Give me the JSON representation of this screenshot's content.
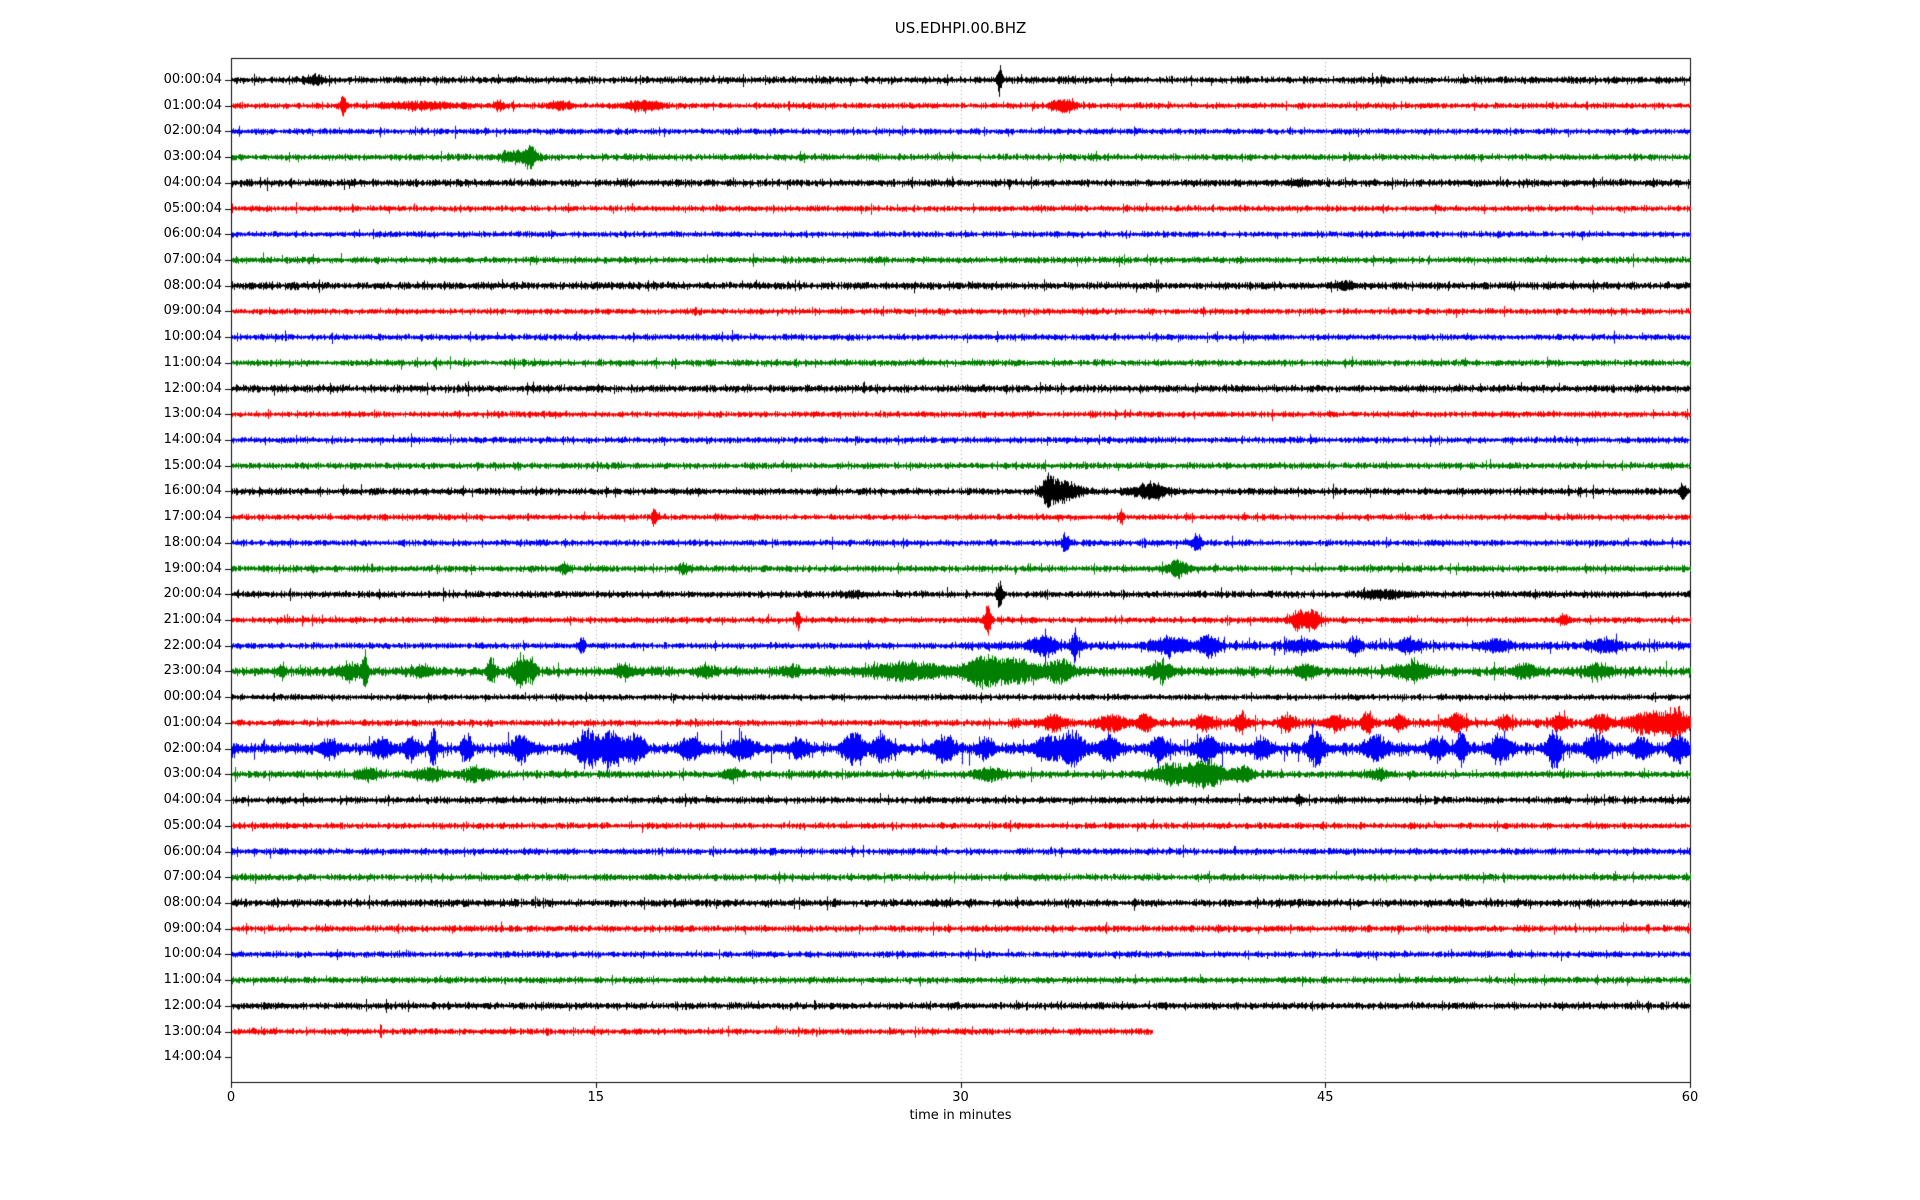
{
  "chart_data": {
    "type": "line",
    "subtype": "seismogram-helicorder-dayplot",
    "title": "US.EDHPI.00.BHZ",
    "xlabel": "time in minutes",
    "xaxis": {
      "min": 0,
      "max": 60,
      "ticks": [
        "0",
        "15",
        "30",
        "45",
        "60"
      ],
      "tick_values": [
        0,
        15,
        30,
        45,
        60
      ],
      "gridlines_at": [
        15,
        30,
        45
      ],
      "grid_style": "dotted"
    },
    "grid_color": "#8a8a8a",
    "trace_colors": {
      "k": "#000000",
      "r": "#ff0000",
      "b": "#0000ff",
      "g": "#008000"
    },
    "color_cycle": [
      "k",
      "r",
      "b",
      "g"
    ],
    "rows": [
      {
        "label": "00:00:04",
        "color": "k",
        "end": 60,
        "sigma": 2.7,
        "bursts": [
          [
            3.4,
            0.25,
            3
          ],
          [
            31.6,
            0.07,
            12
          ]
        ]
      },
      {
        "label": "01:00:04",
        "color": "r",
        "end": 60,
        "sigma": 2.3,
        "bursts": [
          [
            4.6,
            0.08,
            8
          ],
          [
            7.8,
            1.0,
            2.5
          ],
          [
            11.0,
            0.15,
            4
          ],
          [
            13.5,
            0.3,
            3
          ],
          [
            16.9,
            0.5,
            4
          ],
          [
            34.2,
            0.35,
            5
          ]
        ]
      },
      {
        "label": "02:00:04",
        "color": "b",
        "end": 60,
        "sigma": 2.3,
        "bursts": []
      },
      {
        "label": "03:00:04",
        "color": "g",
        "end": 60,
        "sigma": 2.5,
        "bursts": [
          [
            11.8,
            0.5,
            5
          ],
          [
            12.3,
            0.15,
            7
          ]
        ]
      },
      {
        "label": "04:00:04",
        "color": "k",
        "end": 60,
        "sigma": 2.8,
        "bursts": [
          [
            44.0,
            0.3,
            2
          ]
        ]
      },
      {
        "label": "05:00:04",
        "color": "r",
        "end": 60,
        "sigma": 2.3,
        "bursts": []
      },
      {
        "label": "06:00:04",
        "color": "b",
        "end": 60,
        "sigma": 2.3,
        "bursts": []
      },
      {
        "label": "07:00:04",
        "color": "g",
        "end": 60,
        "sigma": 2.5,
        "bursts": []
      },
      {
        "label": "08:00:04",
        "color": "k",
        "end": 60,
        "sigma": 2.9,
        "bursts": [
          [
            45.8,
            0.3,
            3
          ]
        ]
      },
      {
        "label": "09:00:04",
        "color": "r",
        "end": 60,
        "sigma": 2.3,
        "bursts": []
      },
      {
        "label": "10:00:04",
        "color": "b",
        "end": 60,
        "sigma": 2.4,
        "bursts": []
      },
      {
        "label": "11:00:04",
        "color": "g",
        "end": 60,
        "sigma": 2.5,
        "bursts": []
      },
      {
        "label": "12:00:04",
        "color": "k",
        "end": 60,
        "sigma": 2.8,
        "bursts": []
      },
      {
        "label": "13:00:04",
        "color": "r",
        "end": 60,
        "sigma": 2.3,
        "bursts": []
      },
      {
        "label": "14:00:04",
        "color": "b",
        "end": 60,
        "sigma": 2.4,
        "bursts": []
      },
      {
        "label": "15:00:04",
        "color": "g",
        "end": 60,
        "sigma": 2.5,
        "bursts": []
      },
      {
        "label": "16:00:04",
        "color": "k",
        "end": 60,
        "sigma": 2.7,
        "bursts": [
          [
            33.6,
            0.2,
            9
          ],
          [
            34.2,
            0.5,
            8
          ],
          [
            37.8,
            0.5,
            6
          ],
          [
            59.7,
            0.1,
            6
          ]
        ]
      },
      {
        "label": "17:00:04",
        "color": "r",
        "end": 60,
        "sigma": 2.3,
        "bursts": [
          [
            17.4,
            0.08,
            9
          ],
          [
            36.6,
            0.07,
            7
          ]
        ]
      },
      {
        "label": "18:00:04",
        "color": "b",
        "end": 60,
        "sigma": 2.4,
        "bursts": [
          [
            34.3,
            0.1,
            8
          ],
          [
            39.7,
            0.15,
            7
          ]
        ]
      },
      {
        "label": "19:00:04",
        "color": "g",
        "end": 60,
        "sigma": 2.5,
        "bursts": [
          [
            13.7,
            0.15,
            4
          ],
          [
            18.6,
            0.15,
            4
          ],
          [
            38.9,
            0.3,
            7
          ]
        ]
      },
      {
        "label": "20:00:04",
        "color": "k",
        "end": 60,
        "sigma": 2.6,
        "bursts": [
          [
            25.5,
            0.3,
            2
          ],
          [
            31.6,
            0.08,
            11
          ],
          [
            47.3,
            0.7,
            3
          ]
        ]
      },
      {
        "label": "21:00:04",
        "color": "r",
        "end": 60,
        "sigma": 2.4,
        "bursts": [
          [
            23.3,
            0.07,
            8
          ],
          [
            31.1,
            0.1,
            12
          ],
          [
            43.9,
            0.25,
            8
          ],
          [
            44.5,
            0.2,
            9
          ],
          [
            54.8,
            0.15,
            4
          ]
        ]
      },
      {
        "label": "22:00:04",
        "color": "b",
        "end": 60,
        "sigma": 2.4,
        "sigma2": 3.4,
        "sigma2_from": 30,
        "bursts": [
          [
            14.4,
            0.1,
            6
          ],
          [
            33.4,
            0.4,
            8
          ],
          [
            34.7,
            0.12,
            12
          ],
          [
            38.6,
            0.5,
            7
          ],
          [
            40.2,
            0.3,
            9
          ],
          [
            44.0,
            0.4,
            5
          ],
          [
            46.2,
            0.2,
            6
          ],
          [
            48.4,
            0.3,
            6
          ],
          [
            52.0,
            0.4,
            5
          ],
          [
            56.5,
            0.4,
            5
          ]
        ]
      },
      {
        "label": "23:00:04",
        "color": "g",
        "end": 60,
        "sigma": 3.6,
        "bursts": [
          [
            2.1,
            0.1,
            6
          ],
          [
            4.9,
            0.4,
            6
          ],
          [
            5.5,
            0.08,
            14
          ],
          [
            7.8,
            0.3,
            4
          ],
          [
            10.7,
            0.12,
            11
          ],
          [
            11.9,
            0.25,
            13
          ],
          [
            12.4,
            0.1,
            9
          ],
          [
            16.2,
            0.3,
            4
          ],
          [
            19.5,
            0.3,
            4
          ],
          [
            23.0,
            0.3,
            4
          ],
          [
            27.8,
            1.2,
            6
          ],
          [
            30.9,
            0.5,
            11
          ],
          [
            32.3,
            0.7,
            9
          ],
          [
            34.1,
            0.4,
            8
          ],
          [
            38.2,
            0.35,
            8
          ],
          [
            44.2,
            0.3,
            5
          ],
          [
            48.6,
            0.5,
            7
          ],
          [
            53.2,
            0.35,
            6
          ],
          [
            56.2,
            0.4,
            5
          ]
        ]
      },
      {
        "label": "00:00:04",
        "color": "k",
        "end": 60,
        "sigma": 2.3,
        "bursts": []
      },
      {
        "label": "01:00:04",
        "color": "r",
        "end": 60,
        "sigma": 2.5,
        "sigma2": 3.5,
        "sigma2_from": 32,
        "bursts": [
          [
            33.8,
            0.3,
            6
          ],
          [
            36.2,
            0.4,
            6
          ],
          [
            37.6,
            0.2,
            7
          ],
          [
            40.0,
            0.25,
            6
          ],
          [
            41.5,
            0.2,
            7
          ],
          [
            43.4,
            0.2,
            6
          ],
          [
            45.4,
            0.25,
            6
          ],
          [
            46.7,
            0.15,
            8
          ],
          [
            48.0,
            0.2,
            6
          ],
          [
            50.4,
            0.25,
            7
          ],
          [
            52.4,
            0.2,
            6
          ],
          [
            54.6,
            0.25,
            6
          ],
          [
            56.3,
            0.3,
            7
          ],
          [
            58.2,
            0.5,
            9
          ],
          [
            59.4,
            0.4,
            10
          ]
        ]
      },
      {
        "label": "02:00:04",
        "color": "b",
        "end": 60,
        "sigma": 4.2,
        "spike_p": 0.02,
        "spike_amp": 13,
        "bursts": [
          [
            4.0,
            0.3,
            6
          ],
          [
            6.2,
            0.3,
            7
          ],
          [
            7.4,
            0.2,
            9
          ],
          [
            8.3,
            0.1,
            16
          ],
          [
            9.7,
            0.15,
            12
          ],
          [
            11.9,
            0.3,
            9
          ],
          [
            14.6,
            0.3,
            15
          ],
          [
            15.6,
            0.4,
            13
          ],
          [
            16.6,
            0.3,
            10
          ],
          [
            18.9,
            0.3,
            8
          ],
          [
            21.0,
            0.35,
            9
          ],
          [
            23.4,
            0.25,
            8
          ],
          [
            25.6,
            0.3,
            13
          ],
          [
            26.8,
            0.3,
            10
          ],
          [
            29.3,
            0.3,
            10
          ],
          [
            31.0,
            0.25,
            8
          ],
          [
            33.6,
            0.4,
            10
          ],
          [
            34.6,
            0.3,
            14
          ],
          [
            36.1,
            0.3,
            10
          ],
          [
            38.2,
            0.25,
            9
          ],
          [
            40.1,
            0.3,
            11
          ],
          [
            42.4,
            0.25,
            9
          ],
          [
            44.6,
            0.25,
            13
          ],
          [
            47.1,
            0.35,
            10
          ],
          [
            49.6,
            0.25,
            9
          ],
          [
            50.6,
            0.15,
            14
          ],
          [
            52.2,
            0.3,
            11
          ],
          [
            54.4,
            0.2,
            15
          ],
          [
            56.1,
            0.3,
            10
          ],
          [
            58.0,
            0.25,
            9
          ],
          [
            59.5,
            0.25,
            11
          ]
        ]
      },
      {
        "label": "03:00:04",
        "color": "g",
        "end": 60,
        "sigma": 2.9,
        "bursts": [
          [
            5.6,
            0.3,
            5
          ],
          [
            8.1,
            0.4,
            5
          ],
          [
            10.1,
            0.4,
            6
          ],
          [
            20.6,
            0.25,
            4
          ],
          [
            31.2,
            0.4,
            5
          ],
          [
            38.7,
            0.6,
            8
          ],
          [
            40.1,
            0.5,
            11
          ],
          [
            41.6,
            0.3,
            7
          ],
          [
            47.2,
            0.25,
            4
          ]
        ]
      },
      {
        "label": "04:00:04",
        "color": "k",
        "end": 60,
        "sigma": 2.6,
        "bursts": [
          [
            43.9,
            0.07,
            5
          ]
        ]
      },
      {
        "label": "05:00:04",
        "color": "r",
        "end": 60,
        "sigma": 2.4,
        "bursts": []
      },
      {
        "label": "06:00:04",
        "color": "b",
        "end": 60,
        "sigma": 2.5,
        "bursts": []
      },
      {
        "label": "07:00:04",
        "color": "g",
        "end": 60,
        "sigma": 2.6,
        "bursts": []
      },
      {
        "label": "08:00:04",
        "color": "k",
        "end": 60,
        "sigma": 2.9,
        "bursts": []
      },
      {
        "label": "09:00:04",
        "color": "r",
        "end": 60,
        "sigma": 2.5,
        "bursts": []
      },
      {
        "label": "10:00:04",
        "color": "b",
        "end": 60,
        "sigma": 2.4,
        "bursts": []
      },
      {
        "label": "11:00:04",
        "color": "g",
        "end": 60,
        "sigma": 2.5,
        "bursts": []
      },
      {
        "label": "12:00:04",
        "color": "k",
        "end": 60,
        "sigma": 2.7,
        "bursts": []
      },
      {
        "label": "13:00:04",
        "color": "r",
        "end": 37.9,
        "sigma": 2.4,
        "bursts": []
      },
      {
        "label": "14:00:04",
        "color": "k",
        "end": 0,
        "sigma": 0,
        "bursts": []
      }
    ]
  }
}
